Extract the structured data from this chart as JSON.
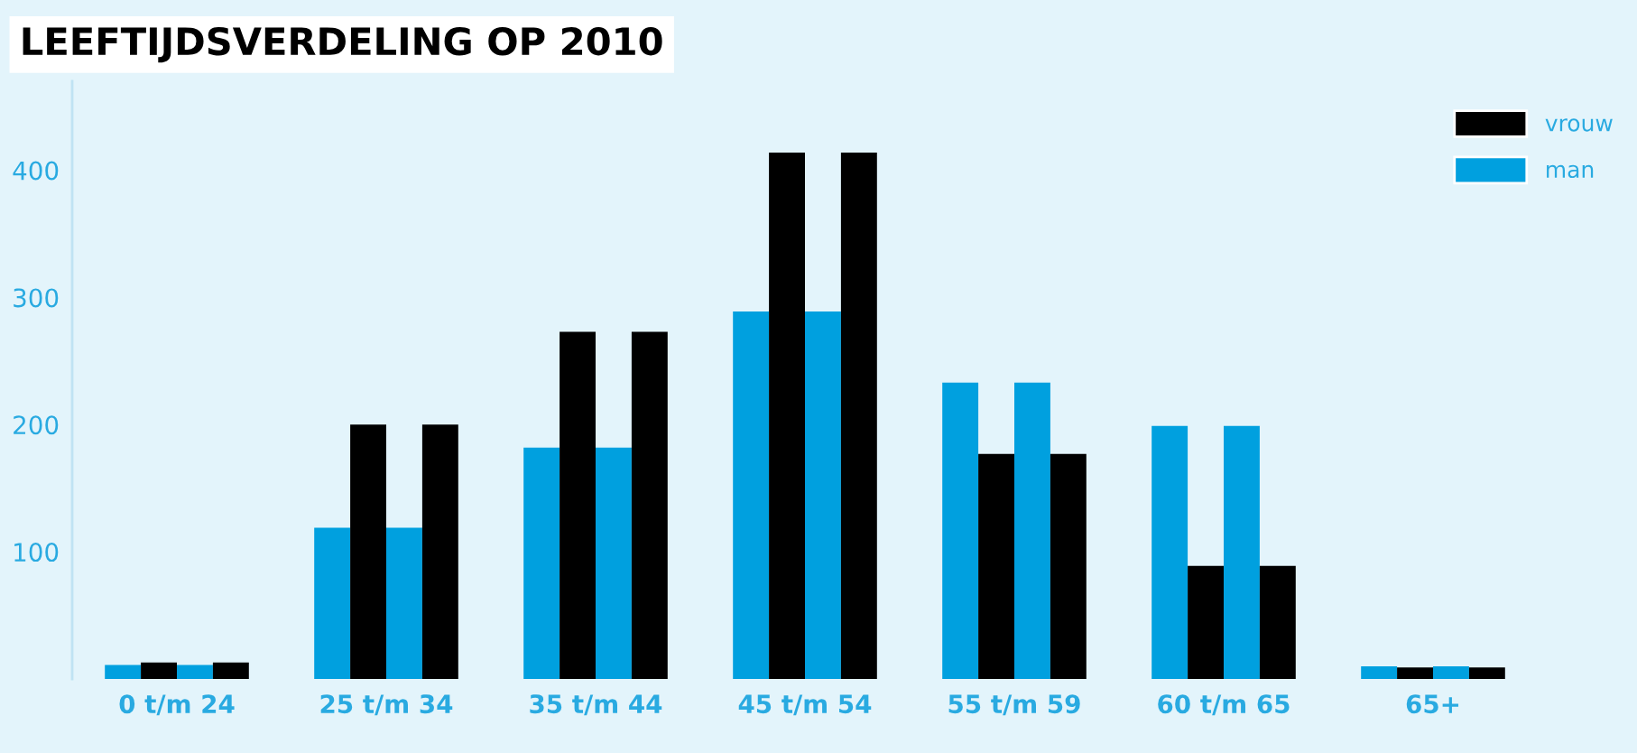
{
  "chart_data": {
    "type": "bar",
    "title": "LEEFTIJDSVERDELING OP 2010",
    "categories": [
      "0 t/m 24",
      "25 t/m 34",
      "35 t/m 44",
      "45 t/m 54",
      "55 t/m 59",
      "60 t/m 65",
      "65+"
    ],
    "series": [
      {
        "name": "man",
        "color": "#00a0df",
        "values": [
          11,
          119,
          182,
          289,
          233,
          199,
          10
        ]
      },
      {
        "name": "vrouw",
        "color": "#000000",
        "values": [
          13,
          200,
          273,
          414,
          177,
          89,
          9
        ]
      },
      {
        "color": "#00a0df",
        "values": [
          11,
          119,
          182,
          289,
          233,
          199,
          10
        ]
      },
      {
        "color": "#000000",
        "values": [
          13,
          200,
          273,
          414,
          177,
          89,
          9
        ]
      }
    ],
    "ylim": [
      0,
      470
    ],
    "yticks": [
      100,
      200,
      300,
      400
    ],
    "grid": false,
    "legend": "top right"
  }
}
